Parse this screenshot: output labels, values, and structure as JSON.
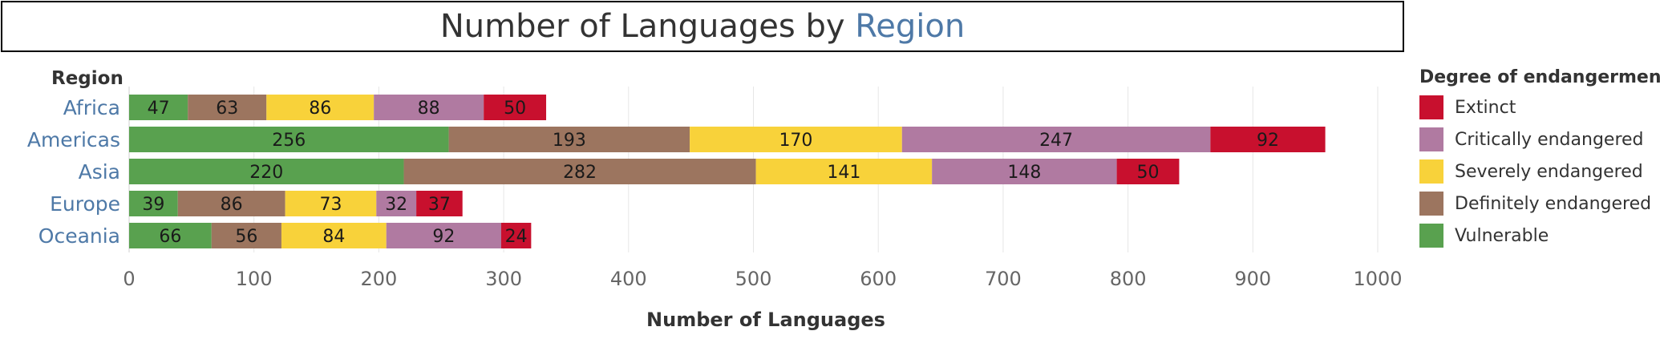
{
  "title": {
    "prefix": "Number of Languages by ",
    "highlight": "Region"
  },
  "legend": {
    "title": "Degree of endangerment",
    "items": [
      {
        "label": "Extinct",
        "color": "#c8102e"
      },
      {
        "label": "Critically endangered",
        "color": "#b07aa1"
      },
      {
        "label": "Severely endangered",
        "color": "#f8d23a"
      },
      {
        "label": "Definitely endangered",
        "color": "#9c755f"
      },
      {
        "label": "Vulnerable",
        "color": "#59a14f"
      }
    ]
  },
  "chart_data": {
    "type": "bar",
    "orientation": "horizontal",
    "stacked": true,
    "row_header": "Region",
    "categories": [
      "Africa",
      "Americas",
      "Asia",
      "Europe",
      "Oceania"
    ],
    "series": [
      {
        "name": "Vulnerable",
        "color": "#59a14f",
        "values": [
          47,
          256,
          220,
          39,
          66
        ]
      },
      {
        "name": "Definitely endangered",
        "color": "#9c755f",
        "values": [
          63,
          193,
          282,
          86,
          56
        ]
      },
      {
        "name": "Severely endangered",
        "color": "#f8d23a",
        "values": [
          86,
          170,
          141,
          73,
          84
        ]
      },
      {
        "name": "Critically endangered",
        "color": "#b07aa1",
        "values": [
          88,
          247,
          148,
          32,
          92
        ]
      },
      {
        "name": "Extinct",
        "color": "#c8102e",
        "values": [
          50,
          92,
          50,
          37,
          24
        ]
      }
    ],
    "xlabel": "Number of Languages",
    "xlim": [
      0,
      1000
    ],
    "xticks": [
      0,
      100,
      200,
      300,
      400,
      500,
      600,
      700,
      800,
      900,
      1000
    ],
    "grid": true,
    "legend_position": "right"
  }
}
